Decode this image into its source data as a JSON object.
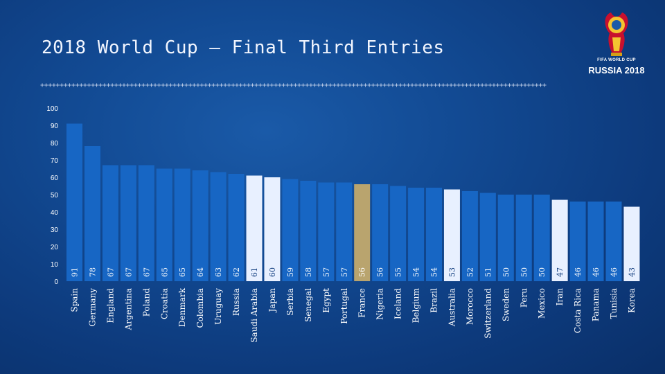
{
  "slide": {
    "title": "2018 World Cup – Final Third Entries",
    "divider": "++++++++++++++++++++++++++++++++++++++++++++++++++++++++++++++++++++++++++++++++++++++++++++++++++++++++++++++++++++++++++++++++++",
    "logo": {
      "line1": "FIFA WORLD CUP",
      "line2": "RUSSIA 2018"
    }
  },
  "colors": {
    "bar_default": "#1766c4",
    "bar_highlight_light": "#e8f0ff",
    "bar_highlight_gold": "#b9a46e",
    "label_dark": "#0d3a7c",
    "label_light": "#ffffff"
  },
  "chart_data": {
    "type": "bar",
    "title": "2018 World Cup – Final Third Entries",
    "ylim": [
      0,
      100
    ],
    "yticks": [
      0,
      10,
      20,
      30,
      40,
      50,
      60,
      70,
      80,
      90,
      100
    ],
    "categories": [
      "Spain",
      "Germany",
      "England",
      "Argentina",
      "Poland",
      "Croatia",
      "Denmark",
      "Colombia",
      "Uruguay",
      "Russia",
      "Saudi Arabia",
      "Japan",
      "Serbia",
      "Senegal",
      "Egypt",
      "Portugal",
      "France",
      "Nigeria",
      "Iceland",
      "Belgium",
      "Brazil",
      "Australia",
      "Morocco",
      "Switzerland",
      "Sweden",
      "Peru",
      "Mexico",
      "Iran",
      "Costa Rica",
      "Panama",
      "Tunisia",
      "Korea"
    ],
    "values": [
      91,
      78,
      67,
      67,
      67,
      65,
      65,
      64,
      63,
      62,
      61,
      60,
      59,
      58,
      57,
      57,
      56,
      56,
      55,
      54,
      54,
      53,
      52,
      51,
      50,
      50,
      50,
      47,
      46,
      46,
      46,
      43
    ],
    "highlight": [
      "",
      "",
      "",
      "",
      "",
      "",
      "",
      "",
      "",
      "",
      "light",
      "light",
      "",
      "",
      "",
      "",
      "gold",
      "",
      "",
      "",
      "",
      "light",
      "",
      "",
      "",
      "",
      "",
      "light",
      "",
      "",
      "",
      "light"
    ],
    "data_labels": true,
    "grid": false
  }
}
